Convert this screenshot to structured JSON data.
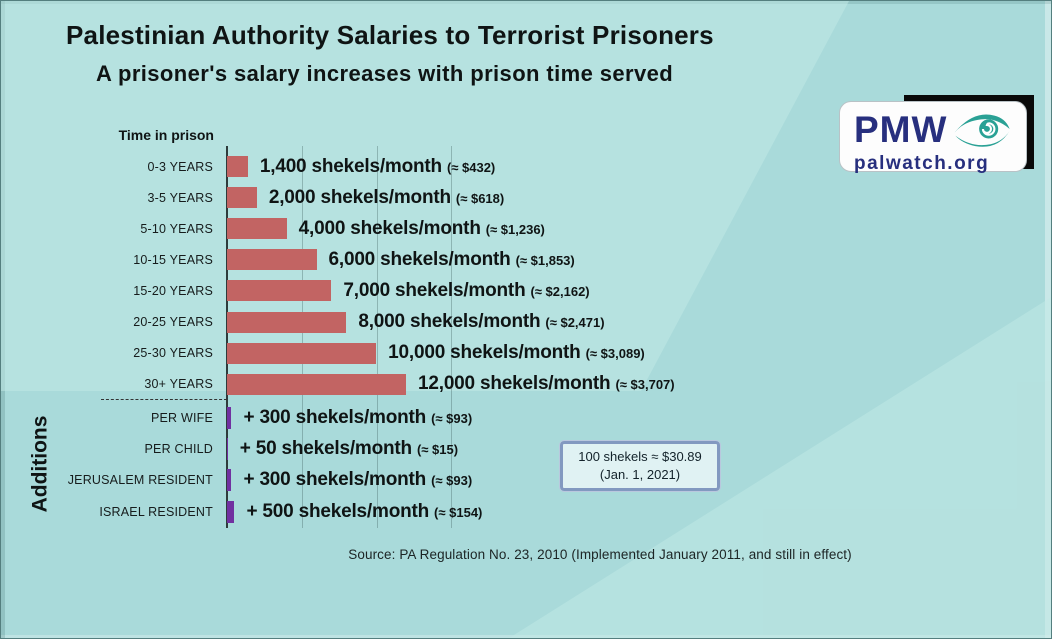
{
  "header": {
    "title": "Palestinian Authority Salaries to Terrorist Prisoners",
    "subtitle": "A prisoner's salary increases with prison time served"
  },
  "logo": {
    "acronym": "PMW",
    "domain": "palwatch.org",
    "eye_icon": "eye-swirl-icon",
    "brand_blue": "#272f7e",
    "brand_teal": "#2aa195"
  },
  "chart_data": {
    "type": "bar",
    "orientation": "horizontal",
    "column_header": "Time in prison",
    "unit": "shekels/month",
    "xlim": [
      0,
      12000
    ],
    "gridline_interval_shekels": 5000,
    "grid": true,
    "bar_color": "#c26463",
    "additions_bar_color": "#7030a0",
    "categories": [
      "0-3 YEARS",
      "3-5 YEARS",
      "5-10 YEARS",
      "10-15 YEARS",
      "15-20 YEARS",
      "20-25 YEARS",
      "25-30 YEARS",
      "30+ YEARS"
    ],
    "rows": [
      {
        "label": "0-3 YEARS",
        "value": 1400,
        "amount": "1,400 shekels/month",
        "usd": "(≈ $432)"
      },
      {
        "label": "3-5 YEARS",
        "value": 2000,
        "amount": "2,000 shekels/month",
        "usd": "(≈ $618)"
      },
      {
        "label": "5-10 YEARS",
        "value": 4000,
        "amount": "4,000 shekels/month",
        "usd": "(≈ $1,236)"
      },
      {
        "label": "10-15 YEARS",
        "value": 6000,
        "amount": "6,000 shekels/month",
        "usd": "(≈ $1,853)"
      },
      {
        "label": "15-20 YEARS",
        "value": 7000,
        "amount": "7,000 shekels/month",
        "usd": "(≈ $2,162)"
      },
      {
        "label": "20-25 YEARS",
        "value": 8000,
        "amount": "8,000 shekels/month",
        "usd": "(≈ $2,471)"
      },
      {
        "label": "25-30 YEARS",
        "value": 10000,
        "amount": "10,000 shekels/month",
        "usd": "(≈ $3,089)"
      },
      {
        "label": "30+ YEARS",
        "value": 12000,
        "amount": "12,000 shekels/month",
        "usd": "(≈ $3,707)"
      }
    ],
    "additions_section_label": "Additions",
    "additions": [
      {
        "label": "PER WIFE",
        "value": 300,
        "amount": "+ 300 shekels/month",
        "usd": "(≈ $93)"
      },
      {
        "label": "PER CHILD",
        "value": 50,
        "amount": "+ 50 shekels/month",
        "usd": "(≈ $15)"
      },
      {
        "label": "JERUSALEM RESIDENT",
        "value": 300,
        "amount": "+ 300 shekels/month",
        "usd": "(≈ $93)"
      },
      {
        "label": "ISRAEL RESIDENT",
        "value": 500,
        "amount": "+ 500 shekels/month",
        "usd": "(≈ $154)"
      }
    ]
  },
  "note": {
    "line1": "100 shekels ≈ $30.89",
    "line2": "(Jan. 1, 2021)"
  },
  "source": "Source: PA Regulation No. 23, 2010 (Implemented January 2011, and still in effect)"
}
